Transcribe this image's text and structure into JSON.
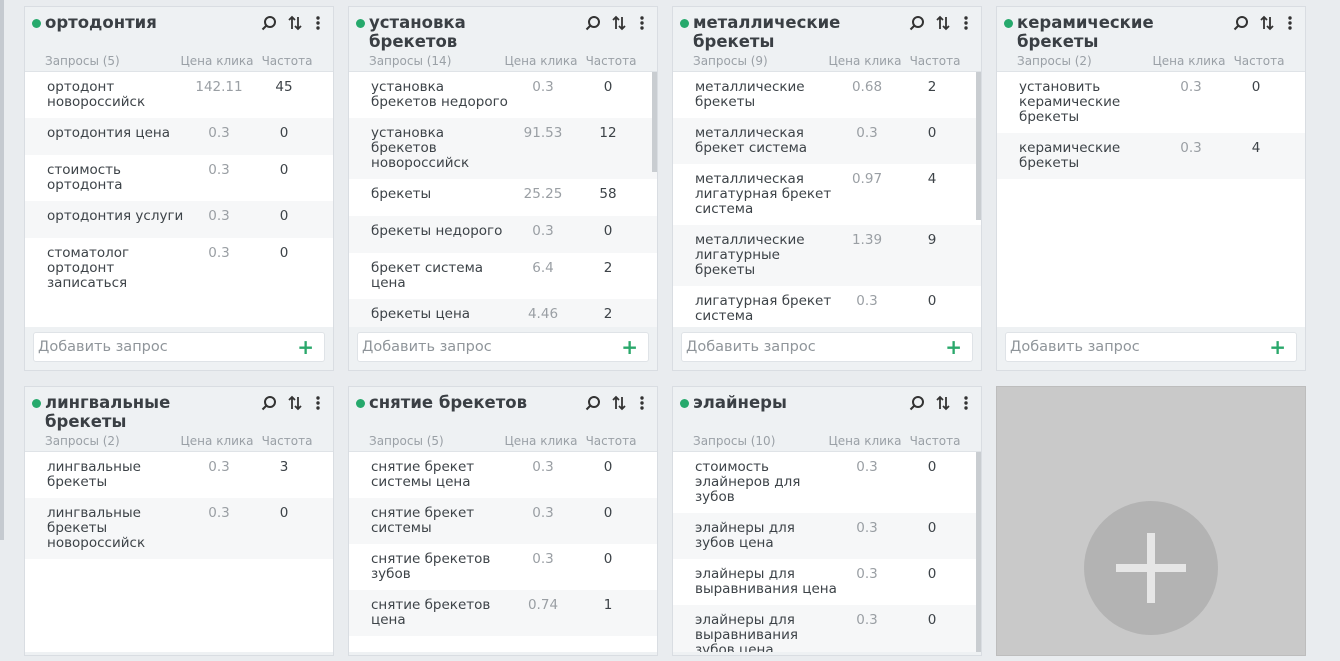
{
  "columns": {
    "price": "Цена клика",
    "freq": "Частота"
  },
  "add_placeholder": "Добавить запрос",
  "groups": [
    {
      "title": "ортодонтия",
      "count_label": "Запросы (5)",
      "rows": [
        [
          "ортодонт новороссийск",
          142.11,
          45
        ],
        [
          "ортодонтия цена",
          0.3,
          0
        ],
        [
          "стоимость ортодонта",
          0.3,
          0
        ],
        [
          "ортодонтия услуги",
          0.3,
          0
        ],
        [
          "стоматолог ортодонт записаться",
          0.3,
          0
        ]
      ]
    },
    {
      "title": "установка брекетов",
      "count_label": "Запросы (14)",
      "rows": [
        [
          "установка брекетов недорого",
          0.3,
          0
        ],
        [
          "установка брекетов новороссийск",
          91.53,
          12
        ],
        [
          "брекеты",
          25.25,
          58
        ],
        [
          "брекеты недорого",
          0.3,
          0
        ],
        [
          "брекет система цена",
          6.4,
          2
        ],
        [
          "брекеты цена",
          4.46,
          2
        ]
      ]
    },
    {
      "title": "металлические брекеты",
      "count_label": "Запросы (9)",
      "rows": [
        [
          "металлические брекеты",
          0.68,
          2
        ],
        [
          "металлическая брекет система",
          0.3,
          0
        ],
        [
          "металлическая лигатурная брекет система",
          0.97,
          4
        ],
        [
          "металлические лигатурные брекеты",
          1.39,
          9
        ],
        [
          "лигатурная брекет система",
          0.3,
          0
        ]
      ]
    },
    {
      "title": "керамические брекеты",
      "count_label": "Запросы (2)",
      "rows": [
        [
          "установить керамические брекеты",
          0.3,
          0
        ],
        [
          "керамические брекеты",
          0.3,
          4
        ]
      ]
    },
    {
      "title": "лингвальные брекеты",
      "count_label": "Запросы (2)",
      "rows": [
        [
          "лингвальные брекеты",
          0.3,
          3
        ],
        [
          "лингвальные брекеты новороссийск",
          0.3,
          0
        ]
      ]
    },
    {
      "title": "снятие брекетов",
      "count_label": "Запросы (5)",
      "rows": [
        [
          "снятие брекет системы цена",
          0.3,
          0
        ],
        [
          "снятие брекет системы",
          0.3,
          0
        ],
        [
          "снятие брекетов зубов",
          0.3,
          0
        ],
        [
          "снятие брекетов цена",
          0.74,
          1
        ]
      ]
    },
    {
      "title": "элайнеры",
      "count_label": "Запросы (10)",
      "rows": [
        [
          "стоимость элайнеров для зубов",
          0.3,
          0
        ],
        [
          "элайнеры для зубов цена",
          0.3,
          0
        ],
        [
          "элайнеры для выравнивания цена",
          0.3,
          0
        ],
        [
          "элайнеры для выравнивания зубов цена",
          0.3,
          0
        ]
      ]
    }
  ]
}
